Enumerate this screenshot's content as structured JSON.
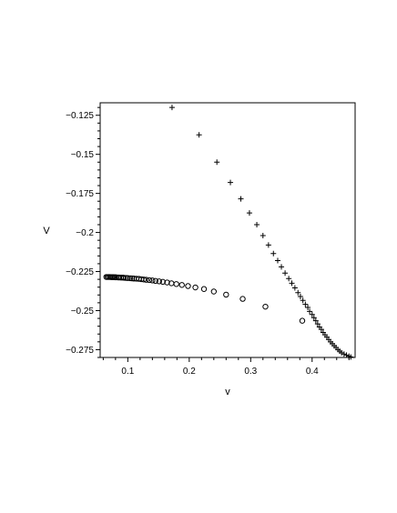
{
  "chart_data": {
    "type": "scatter",
    "xlabel": "v",
    "ylabel": "V",
    "xlim": [
      0.055,
      0.47
    ],
    "ylim": [
      -0.28,
      -0.117
    ],
    "x_ticks": [
      0.1,
      0.2,
      0.3,
      0.4
    ],
    "x_tick_labels": [
      "0.1",
      "0.2",
      "0.3",
      "0.4"
    ],
    "y_ticks": [
      -0.125,
      -0.15,
      -0.175,
      -0.2,
      -0.225,
      -0.25,
      -0.275
    ],
    "y_tick_labels": [
      "−0.125",
      "−0.15",
      "−0.175",
      "−0.2",
      "−0.225",
      "−0.25",
      "−0.275"
    ],
    "grid": false,
    "legend": "none",
    "series": [
      {
        "marker": "plus",
        "color": "#000000",
        "points": [
          [
            0.172,
            -0.12
          ],
          [
            0.216,
            -0.1375
          ],
          [
            0.245,
            -0.155
          ],
          [
            0.267,
            -0.168
          ],
          [
            0.284,
            -0.1785
          ],
          [
            0.298,
            -0.1875
          ],
          [
            0.31,
            -0.195
          ],
          [
            0.32,
            -0.202
          ],
          [
            0.329,
            -0.208
          ],
          [
            0.337,
            -0.2135
          ],
          [
            0.344,
            -0.218
          ],
          [
            0.35,
            -0.222
          ],
          [
            0.356,
            -0.226
          ],
          [
            0.362,
            -0.2295
          ],
          [
            0.367,
            -0.2325
          ],
          [
            0.372,
            -0.2355
          ],
          [
            0.377,
            -0.2385
          ],
          [
            0.381,
            -0.241
          ],
          [
            0.385,
            -0.2435
          ],
          [
            0.389,
            -0.246
          ],
          [
            0.393,
            -0.248
          ],
          [
            0.396,
            -0.2505
          ],
          [
            0.4,
            -0.2525
          ],
          [
            0.403,
            -0.2545
          ],
          [
            0.406,
            -0.2565
          ],
          [
            0.409,
            -0.2585
          ],
          [
            0.412,
            -0.2605
          ],
          [
            0.415,
            -0.262
          ],
          [
            0.418,
            -0.264
          ],
          [
            0.421,
            -0.2655
          ],
          [
            0.424,
            -0.267
          ],
          [
            0.427,
            -0.2685
          ],
          [
            0.43,
            -0.27
          ],
          [
            0.433,
            -0.2712
          ],
          [
            0.436,
            -0.2725
          ],
          [
            0.439,
            -0.2737
          ],
          [
            0.442,
            -0.275
          ],
          [
            0.445,
            -0.276
          ],
          [
            0.448,
            -0.277
          ],
          [
            0.452,
            -0.2778
          ],
          [
            0.456,
            -0.2785
          ],
          [
            0.46,
            -0.2792
          ],
          [
            0.463,
            -0.2797
          ]
        ]
      },
      {
        "marker": "circle",
        "color": "#000000",
        "points": [
          [
            0.384,
            -0.2565
          ],
          [
            0.324,
            -0.2475
          ],
          [
            0.287,
            -0.2425
          ],
          [
            0.26,
            -0.2398
          ],
          [
            0.24,
            -0.2378
          ],
          [
            0.224,
            -0.2362
          ],
          [
            0.21,
            -0.2352
          ],
          [
            0.198,
            -0.2343
          ],
          [
            0.188,
            -0.2336
          ],
          [
            0.179,
            -0.233
          ],
          [
            0.171,
            -0.2325
          ],
          [
            0.164,
            -0.232
          ],
          [
            0.157,
            -0.2316
          ],
          [
            0.151,
            -0.2313
          ],
          [
            0.145,
            -0.231
          ],
          [
            0.14,
            -0.2307
          ],
          [
            0.135,
            -0.2305
          ],
          [
            0.13,
            -0.2303
          ],
          [
            0.126,
            -0.2301
          ],
          [
            0.122,
            -0.2299
          ],
          [
            0.118,
            -0.2297
          ],
          [
            0.114,
            -0.2296
          ],
          [
            0.11,
            -0.2295
          ],
          [
            0.107,
            -0.2294
          ],
          [
            0.104,
            -0.2293
          ],
          [
            0.1,
            -0.2292
          ],
          [
            0.097,
            -0.2291
          ],
          [
            0.094,
            -0.229
          ],
          [
            0.092,
            -0.2289
          ],
          [
            0.089,
            -0.2289
          ],
          [
            0.086,
            -0.2288
          ],
          [
            0.084,
            -0.2288
          ],
          [
            0.081,
            -0.2287
          ],
          [
            0.079,
            -0.2287
          ],
          [
            0.077,
            -0.2286
          ],
          [
            0.075,
            -0.2286
          ],
          [
            0.073,
            -0.2286
          ],
          [
            0.071,
            -0.2285
          ],
          [
            0.069,
            -0.2285
          ],
          [
            0.067,
            -0.2285
          ],
          [
            0.065,
            -0.2285
          ]
        ]
      }
    ]
  }
}
